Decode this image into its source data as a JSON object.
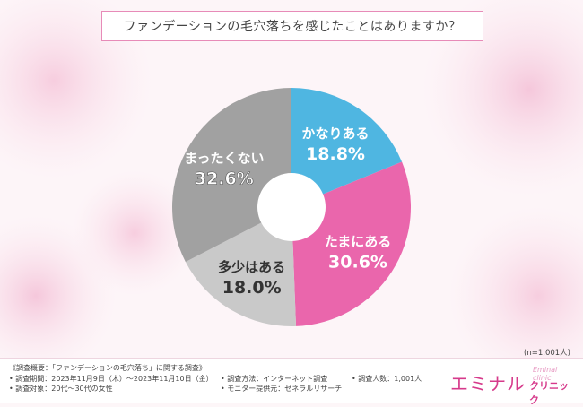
{
  "title": "ファンデーションの毛穴落ちを感じたことはありますか？",
  "chart_data": {
    "type": "pie",
    "subtype": "donut",
    "title": "ファンデーションの毛穴落ちを感じたことはありますか？",
    "categories": [
      "かなりある",
      "たまにある",
      "多少はある",
      "まったくない"
    ],
    "values": [
      18.8,
      30.6,
      18.0,
      32.6
    ],
    "value_labels": [
      "18.8%",
      "30.6%",
      "18.0%",
      "32.6%"
    ],
    "colors": [
      "#4fb6e1",
      "#ea66ac",
      "#c9c9c9",
      "#a1a1a1"
    ],
    "start": "12 o'clock, clockwise"
  },
  "sample_note": "(n=1,001人)",
  "footer": {
    "summary": "《調査概要：「ファンデーションの毛穴落ち」に関する調査》",
    "period": "• 調査期間：2023年11月9日（木）～2023年11月10日（金）",
    "method": "• 調査方法：インターネット調査",
    "count": "• 調査人数：1,001人",
    "target": "• 調査対象：20代～30代の女性",
    "provider": "• モニター提供元：ゼネラルリサーチ"
  },
  "logo": {
    "main": "エミナル",
    "sub": "クリニック",
    "script": "Eminal clinic"
  }
}
